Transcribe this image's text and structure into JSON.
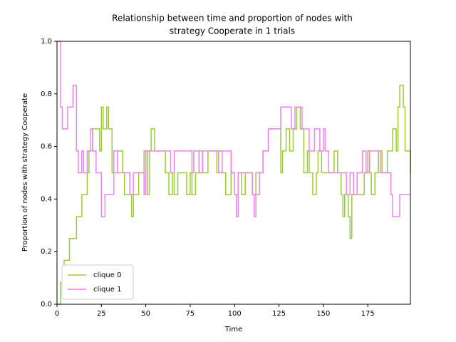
{
  "chart_data": {
    "type": "line",
    "title": [
      "Relationship between time and proportion of nodes with",
      "strategy Cooperate in 1 trials"
    ],
    "x_label": "Time",
    "y_label": "Proportion of nodes with strategy Cooperate",
    "xlim": [
      0,
      199
    ],
    "ylim": [
      0,
      1
    ],
    "xticks": [
      0,
      25,
      50,
      75,
      100,
      125,
      150,
      175
    ],
    "yticks": [
      {
        "value": 0,
        "label": "0.0"
      },
      0.2,
      0.4,
      0.6,
      0.8,
      {
        "value": 1,
        "label": "1.0"
      }
    ],
    "legend": "lower left",
    "series": [
      {
        "name": "clique 0",
        "color": "#9acd32",
        "x": [
          0,
          2,
          4,
          7,
          11,
          14,
          17,
          18,
          20,
          24,
          25,
          26,
          28,
          29,
          31,
          34,
          37,
          38,
          42,
          43,
          46,
          49,
          51,
          52,
          53,
          55,
          61,
          63,
          65,
          66,
          68,
          73,
          75,
          76,
          78,
          80,
          82,
          85,
          90,
          91,
          93,
          95,
          98,
          100,
          102,
          104,
          106,
          110,
          112,
          116,
          119,
          126,
          127,
          129,
          131,
          133,
          135,
          137,
          139,
          141,
          142,
          144,
          146,
          147,
          149,
          156,
          158,
          160,
          161,
          162,
          164,
          165,
          166,
          173,
          175,
          176,
          177,
          179,
          181,
          183,
          186,
          189,
          191,
          192,
          193,
          195,
          196,
          199
        ],
        "values": [
          0,
          0.083,
          0.167,
          0.25,
          0.333,
          0.417,
          0.5,
          0.583,
          0.667,
          0.583,
          0.75,
          0.667,
          0.75,
          0.667,
          0.5,
          0.583,
          0.5,
          0.417,
          0.333,
          0.417,
          0.5,
          0.583,
          0.417,
          0.583,
          0.667,
          0.583,
          0.5,
          0.417,
          0.5,
          0.417,
          0.5,
          0.417,
          0.5,
          0.417,
          0.5,
          0.583,
          0.5,
          0.583,
          0.5,
          0.583,
          0.5,
          0.417,
          0.5,
          0.417,
          0.5,
          0.417,
          0.5,
          0.417,
          0.5,
          0.583,
          0.667,
          0.5,
          0.583,
          0.667,
          0.583,
          0.667,
          0.75,
          0.667,
          0.5,
          0.583,
          0.5,
          0.417,
          0.5,
          0.583,
          0.5,
          0.583,
          0.5,
          0.417,
          0.333,
          0.417,
          0.333,
          0.25,
          0.417,
          0.5,
          0.583,
          0.5,
          0.417,
          0.5,
          0.583,
          0.5,
          0.583,
          0.667,
          0.583,
          0.75,
          0.833,
          0.75,
          0.583,
          0.5
        ]
      },
      {
        "name": "clique 1",
        "color": "#ee82ee",
        "x": [
          0,
          2,
          3,
          6,
          9,
          11,
          12,
          14,
          15,
          17,
          19,
          20,
          22,
          25,
          27,
          32,
          34,
          41,
          43,
          49,
          50,
          64,
          66,
          76,
          77,
          80,
          82,
          91,
          93,
          98,
          100,
          101,
          102,
          110,
          111,
          112,
          114,
          116,
          119,
          126,
          132,
          134,
          138,
          142,
          145,
          148,
          150,
          151,
          153,
          163,
          165,
          167,
          169,
          172,
          174,
          176,
          182,
          188,
          189,
          193,
          199
        ],
        "values": [
          1,
          0.75,
          0.667,
          0.75,
          0.833,
          0.583,
          0.5,
          0.583,
          0.5,
          0.583,
          0.667,
          0.583,
          0.5,
          0.333,
          0.417,
          0.583,
          0.5,
          0.417,
          0.5,
          0.417,
          0.583,
          0.5,
          0.583,
          0.5,
          0.583,
          0.5,
          0.583,
          0.5,
          0.583,
          0.5,
          0.417,
          0.333,
          0.5,
          0.417,
          0.333,
          0.417,
          0.5,
          0.583,
          0.667,
          0.75,
          0.667,
          0.75,
          0.667,
          0.583,
          0.667,
          0.583,
          0.667,
          0.583,
          0.5,
          0.417,
          0.5,
          0.417,
          0.5,
          0.583,
          0.5,
          0.583,
          0.5,
          0.417,
          0.333,
          0.417,
          0.417
        ]
      }
    ]
  }
}
